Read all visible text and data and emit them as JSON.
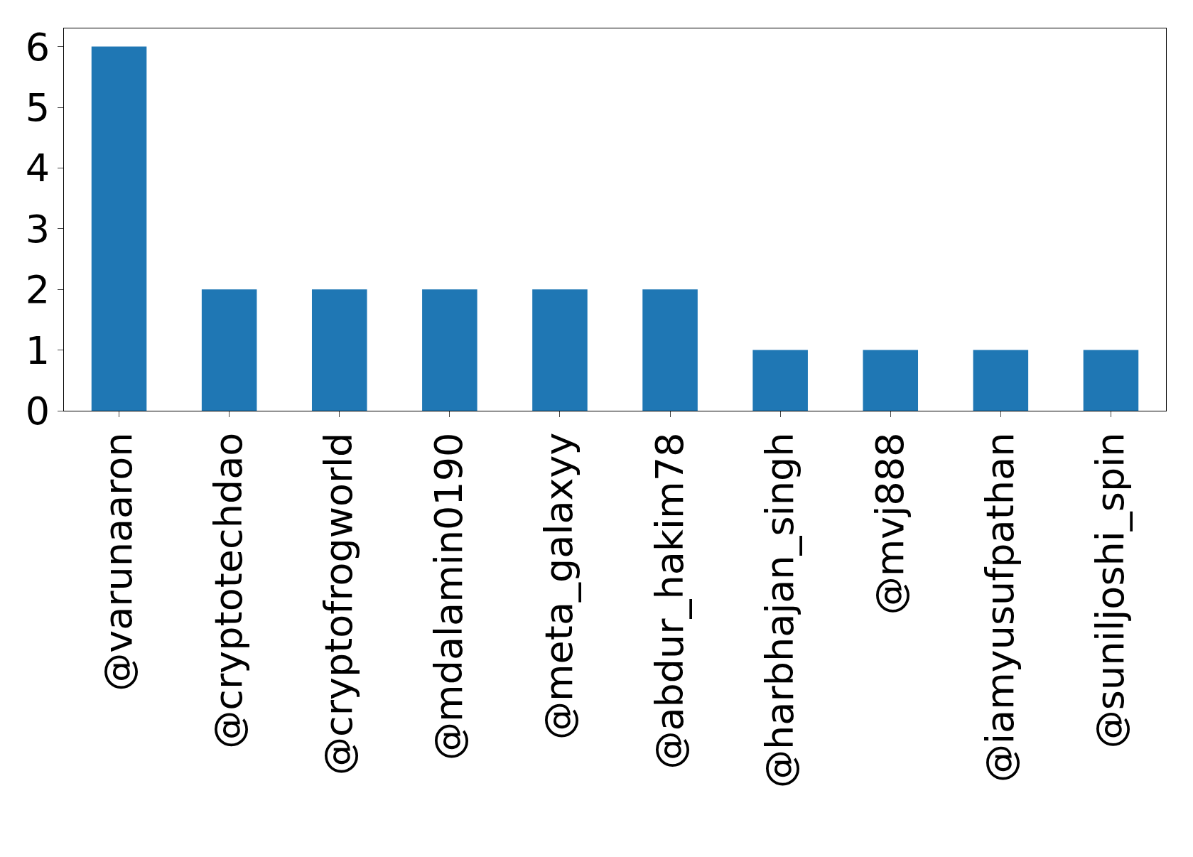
{
  "chart_data": {
    "type": "bar",
    "categories": [
      "@varunaaron",
      "@cryptotechdao",
      "@cryptofrogworld",
      "@mdalamin0190",
      "@meta_galaxyy",
      "@abdur_hakim78",
      "@harbhajan_singh",
      "@mvj888",
      "@iamyusufpathan",
      "@suniljoshi_spin"
    ],
    "values": [
      6,
      2,
      2,
      2,
      2,
      2,
      1,
      1,
      1,
      1
    ],
    "color": "#1f77b4",
    "ylim": [
      0,
      6.3
    ],
    "yticks": [
      0,
      1,
      2,
      3,
      4,
      5,
      6
    ],
    "grid": false
  }
}
